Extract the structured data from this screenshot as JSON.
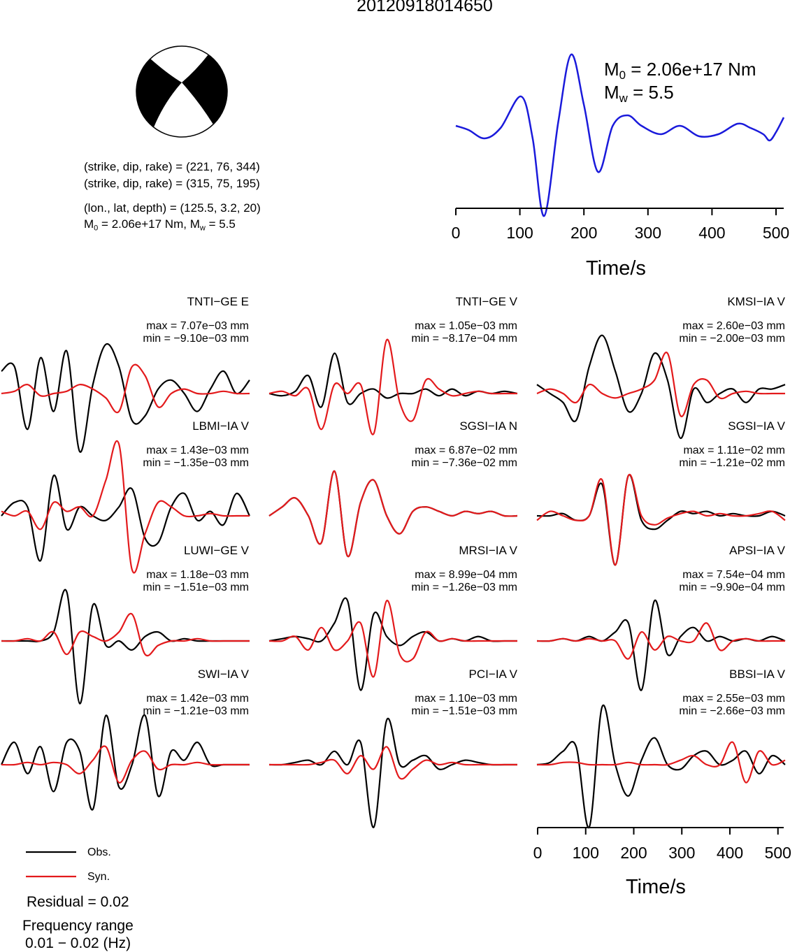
{
  "title": "20120918014650",
  "focal_info": {
    "line1": "(strike, dip, rake) = (221, 76, 344)",
    "line2": "(strike, dip, rake) = (315, 75, 195)",
    "line3": "(lon., lat, depth) = (125.5, 3.2, 20)",
    "m0_prefix": "M",
    "m0_sub": "0",
    "m0_rest": " = 2.06e+17 Nm, M",
    "mw_sub": "w",
    "mw_rest": " = 5.5"
  },
  "stf_labels": {
    "m0_prefix": "M",
    "m0_sub": "0",
    "m0_rest": " = 2.06e+17 Nm",
    "mw_prefix": "M",
    "mw_sub": "w",
    "mw_rest": " = 5.5"
  },
  "axis": {
    "xlabel": "Time/s",
    "ticks": [
      "0",
      "100",
      "200",
      "300",
      "400",
      "500"
    ],
    "xlim": [
      0,
      512
    ]
  },
  "legend": {
    "obs": "Obs.",
    "syn": "Syn."
  },
  "residual": "Residual = 0.02",
  "freq_line1": "Frequency range",
  "freq_line2": "0.01 − 0.02 (Hz)",
  "colors": {
    "obs": "#000000",
    "syn": "#e31a1c",
    "stf": "#1a1adb",
    "beachball": "#000000"
  },
  "chart_data": [
    {
      "type": "line",
      "chart": "source-time-function",
      "xlabel": "Time/s",
      "xlim": [
        0,
        512
      ],
      "series": [
        {
          "x": [
            0,
            20,
            45,
            70,
            102,
            120,
            138,
            160,
            180,
            200,
            222,
            245,
            268,
            290,
            320,
            350,
            380,
            410,
            440,
            460,
            480,
            490,
            500,
            512
          ],
          "values": [
            0.3,
            0.2,
            0.0,
            0.25,
            1.0,
            0.0,
            -1.85,
            0.4,
            2.0,
            0.8,
            -0.8,
            0.3,
            0.55,
            0.3,
            0.1,
            0.3,
            0.05,
            0.1,
            0.35,
            0.25,
            0.1,
            -0.05,
            0.15,
            0.5
          ]
        }
      ]
    },
    {
      "type": "line",
      "chart": "waveform-grid",
      "rows": 4,
      "cols": 3,
      "panels": [
        {
          "station": "TNTI−GE E",
          "max": "max = 7.07e−03 mm",
          "min": "min = −9.10e−03 mm",
          "obs": [
            0.5,
            0.6,
            -0.8,
            0.8,
            -0.4,
            0.95,
            -1.3,
            0.2,
            1.1,
            0.6,
            -0.6,
            -0.5,
            0.1,
            0.3,
            0.0,
            -0.4,
            0.1,
            0.5,
            0.0,
            0.3
          ],
          "syn": [
            0.0,
            0.05,
            0.2,
            -0.05,
            0.0,
            0.05,
            0.2,
            0.1,
            -0.1,
            -0.4,
            0.6,
            0.4,
            -0.3,
            0.0,
            0.1,
            0.0,
            0.0,
            0.05,
            0.0,
            0.0
          ]
        },
        {
          "station": "TNTI−GE V",
          "max": "max = 1.05e−03 mm",
          "min": "min = −8.17e−04 mm",
          "obs": [
            0.0,
            -0.05,
            0.05,
            0.4,
            -0.3,
            0.9,
            -0.2,
            0.0,
            0.1,
            -0.1,
            0.0,
            0.0,
            0.1,
            -0.05,
            0.1,
            -0.05,
            0.05,
            0.0,
            0.05,
            0.0
          ],
          "syn": [
            0.0,
            0.05,
            -0.05,
            0.1,
            -0.8,
            0.2,
            0.0,
            0.2,
            -0.9,
            1.2,
            -0.2,
            -0.6,
            0.3,
            0.1,
            -0.05,
            0.0,
            0.05,
            0.0,
            0.0,
            0.0
          ]
        },
        {
          "station": "KMSI−IA V",
          "max": "max = 2.60e−03 mm",
          "min": "min = −2.00e−03 mm",
          "obs": [
            0.2,
            0.0,
            -0.2,
            -0.6,
            0.6,
            1.3,
            0.5,
            -0.4,
            0.0,
            0.9,
            0.3,
            -1.0,
            0.1,
            -0.2,
            0.0,
            0.1,
            -0.2,
            0.1,
            0.1,
            0.2
          ],
          "syn": [
            0.0,
            0.1,
            0.0,
            -0.2,
            0.2,
            0.0,
            -0.1,
            0.0,
            0.1,
            0.3,
            0.9,
            -0.5,
            0.2,
            0.3,
            -0.1,
            0.0,
            0.05,
            0.0,
            0.0,
            0.0
          ]
        },
        {
          "station": "LBMI−IA V",
          "max": "max = 1.43e−03 mm",
          "min": "min = −1.35e−03 mm",
          "obs": [
            0.0,
            0.3,
            0.2,
            -1.0,
            0.9,
            -0.3,
            0.2,
            0.0,
            -0.1,
            0.2,
            0.6,
            -0.5,
            -0.6,
            0.2,
            0.5,
            -0.1,
            0.1,
            -0.2,
            0.5,
            0.0
          ],
          "syn": [
            0.1,
            0.0,
            0.1,
            -0.3,
            0.3,
            0.1,
            0.2,
            0.0,
            0.8,
            1.6,
            -1.2,
            -0.4,
            0.3,
            0.2,
            0.0,
            0.0,
            0.05,
            0.0,
            0.0,
            0.0
          ]
        },
        {
          "station": "SGSI−IA N",
          "max": "max = 6.87e−02 mm",
          "min": "min = −7.36e−02 mm",
          "obs": [
            0.0,
            0.2,
            0.4,
            0.0,
            -0.6,
            1.0,
            -0.9,
            0.3,
            0.8,
            0.0,
            -0.4,
            0.1,
            0.2,
            0.1,
            0.0,
            0.1,
            0.05,
            0.1,
            0.0,
            0.0
          ],
          "syn": [
            0.0,
            0.2,
            0.4,
            0.0,
            -0.6,
            1.0,
            -0.9,
            0.3,
            0.8,
            0.0,
            -0.4,
            0.1,
            0.2,
            0.1,
            0.0,
            0.1,
            0.05,
            0.1,
            0.0,
            0.0
          ]
        },
        {
          "station": "SGSI−IA V",
          "max": "max = 1.11e−02 mm",
          "min": "min = −1.21e−02 mm",
          "obs": [
            0.0,
            0.0,
            0.05,
            -0.1,
            0.0,
            0.7,
            -1.1,
            0.9,
            -0.1,
            -0.3,
            -0.1,
            0.1,
            0.05,
            0.1,
            0.0,
            0.05,
            0.0,
            0.0,
            0.1,
            0.0
          ],
          "syn": [
            -0.1,
            0.1,
            0.0,
            -0.1,
            0.0,
            0.8,
            -1.1,
            0.9,
            0.0,
            -0.2,
            -0.05,
            0.05,
            0.1,
            0.0,
            0.05,
            0.0,
            0.0,
            0.05,
            0.1,
            -0.1
          ]
        },
        {
          "station": "LUWI−GE V",
          "max": "max = 1.18e−03 mm",
          "min": "min = −1.51e−03 mm",
          "obs": [
            0.0,
            0.0,
            0.0,
            0.0,
            0.2,
            1.1,
            -1.4,
            0.8,
            -0.1,
            0.0,
            -0.2,
            0.1,
            0.2,
            0.0,
            0.05,
            0.0,
            0.0,
            0.0,
            0.0,
            0.0
          ],
          "syn": [
            0.0,
            0.0,
            0.05,
            0.0,
            0.2,
            -0.3,
            0.2,
            0.1,
            0.0,
            0.2,
            0.6,
            -0.3,
            -0.1,
            0.0,
            0.0,
            0.05,
            0.0,
            0.0,
            0.0,
            0.0
          ]
        },
        {
          "station": "MRSI−IA V",
          "max": "max = 8.99e−04 mm",
          "min": "min = −1.26e−03 mm",
          "obs": [
            0.0,
            0.05,
            0.1,
            0.05,
            0.0,
            0.4,
            0.9,
            -1.1,
            0.6,
            0.1,
            -0.1,
            0.1,
            0.2,
            0.0,
            0.05,
            0.0,
            0.1,
            0.0,
            0.0,
            0.0
          ],
          "syn": [
            0.0,
            0.0,
            0.1,
            -0.2,
            0.3,
            -0.2,
            0.0,
            0.4,
            -0.8,
            0.9,
            -0.3,
            -0.4,
            0.2,
            0.0,
            0.05,
            0.0,
            0.0,
            0.0,
            0.0,
            0.0
          ]
        },
        {
          "station": "APSI−IA V",
          "max": "max = 7.54e−04 mm",
          "min": "min = −9.90e−04 mm",
          "obs": [
            0.0,
            0.0,
            0.05,
            0.0,
            0.1,
            0.0,
            0.2,
            0.4,
            -1.1,
            0.9,
            -0.3,
            0.1,
            0.3,
            0.0,
            0.1,
            0.0,
            0.05,
            0.0,
            0.1,
            0.0
          ],
          "syn": [
            0.0,
            0.0,
            0.05,
            0.0,
            0.05,
            0.0,
            0.0,
            -0.4,
            0.2,
            -0.2,
            0.1,
            0.0,
            0.0,
            0.4,
            -0.2,
            0.0,
            0.05,
            0.0,
            0.0,
            0.0
          ]
        },
        {
          "station": "SWI−IA V",
          "max": "max = 1.42e−03 mm",
          "min": "min = −1.21e−03 mm",
          "obs": [
            0.0,
            0.5,
            -0.2,
            0.4,
            -0.6,
            0.5,
            0.3,
            -1.0,
            1.1,
            -0.5,
            0.0,
            1.1,
            -0.7,
            0.3,
            0.1,
            0.5,
            0.0,
            0.0,
            0.0,
            0.0
          ],
          "syn": [
            0.0,
            0.0,
            0.05,
            0.0,
            0.05,
            0.0,
            -0.2,
            0.1,
            0.4,
            -0.4,
            0.1,
            0.3,
            -0.1,
            0.0,
            0.0,
            0.05,
            0.0,
            0.0,
            0.0,
            0.0
          ]
        },
        {
          "station": "PCI−IA V",
          "max": "max = 1.10e−03 mm",
          "min": "min = −1.51e−03 mm",
          "obs": [
            0.0,
            0.0,
            0.05,
            0.1,
            0.0,
            0.3,
            0.0,
            0.5,
            -1.4,
            1.0,
            0.0,
            0.1,
            0.2,
            -0.1,
            0.0,
            0.1,
            0.05,
            0.0,
            0.0,
            0.0
          ],
          "syn": [
            0.0,
            0.0,
            0.0,
            0.0,
            0.05,
            0.1,
            -0.2,
            0.2,
            -0.1,
            0.4,
            -0.3,
            -0.1,
            0.1,
            0.0,
            0.05,
            0.0,
            0.0,
            0.0,
            0.0,
            0.0
          ]
        },
        {
          "station": "BBSI−IA V",
          "max": "max = 2.55e−03 mm",
          "min": "min = −2.66e−03 mm",
          "obs": [
            0.0,
            0.05,
            0.3,
            0.4,
            -1.4,
            1.3,
            0.0,
            -0.7,
            0.1,
            0.6,
            0.0,
            -0.1,
            0.2,
            0.3,
            0.0,
            0.1,
            0.3,
            -0.2,
            0.2,
            0.0
          ],
          "syn": [
            0.0,
            0.0,
            0.05,
            0.05,
            0.0,
            0.0,
            0.0,
            0.05,
            0.0,
            0.0,
            0.0,
            0.1,
            0.2,
            0.0,
            0.0,
            0.5,
            -0.4,
            0.3,
            0.0,
            0.1
          ]
        }
      ]
    }
  ]
}
